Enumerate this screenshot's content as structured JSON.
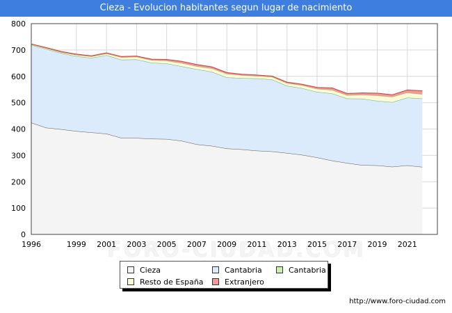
{
  "header": {
    "title": "Cieza - Evolucion habitantes segun lugar de nacimiento"
  },
  "footer": {
    "url": "http://www.foro-ciudad.com"
  },
  "watermark": "FORO-CIUDAD.COM",
  "chart_data": {
    "type": "area",
    "title": "Cieza - Evolucion habitantes segun lugar de nacimiento",
    "xlabel": "",
    "ylabel": "",
    "x": [
      1996,
      1997,
      1998,
      1999,
      2000,
      2001,
      2002,
      2003,
      2004,
      2005,
      2006,
      2007,
      2008,
      2009,
      2010,
      2011,
      2012,
      2013,
      2014,
      2015,
      2016,
      2017,
      2018,
      2019,
      2020,
      2021,
      2022
    ],
    "xticks": [
      "1996",
      "1999",
      "2001",
      "2003",
      "2005",
      "2007",
      "2009",
      "2011",
      "2013",
      "2015",
      "2017",
      "2019",
      "2021"
    ],
    "yticks": [
      "0",
      "100",
      "200",
      "300",
      "400",
      "500",
      "600",
      "700",
      "800"
    ],
    "ylim": [
      0,
      800
    ],
    "xlim": [
      1996,
      2023
    ],
    "grid": true,
    "stacked": true,
    "legend_position": "bottom",
    "series": [
      {
        "name": "Cieza",
        "color": "#f4f4f4",
        "edge": "#555555",
        "values": [
          424,
          405,
          399,
          392,
          387,
          382,
          366,
          366,
          363,
          362,
          355,
          342,
          336,
          326,
          323,
          318,
          315,
          309,
          302,
          292,
          280,
          271,
          263,
          262,
          257,
          262,
          256
        ]
      },
      {
        "name": "Cantabria",
        "color": "#dcebfc",
        "edge": "#8bbbe8",
        "values": [
          295,
          298,
          289,
          284,
          283,
          298,
          297,
          298,
          289,
          287,
          283,
          285,
          281,
          270,
          270,
          274,
          273,
          255,
          253,
          249,
          255,
          245,
          252,
          245,
          245,
          257,
          260
        ]
      },
      {
        "name": "Cantabria",
        "color": "#ccf0b4",
        "edge": "#77bb55",
        "values": [
          0,
          0,
          0,
          0,
          0,
          0,
          0,
          0,
          0,
          0,
          0,
          0,
          0,
          0,
          0,
          0,
          0,
          0,
          0,
          0,
          0,
          0,
          0,
          0,
          0,
          0,
          0
        ]
      },
      {
        "name": "Resto de España",
        "color": "#fbfbd8",
        "edge": "#b8b86a",
        "values": [
          2,
          3,
          3,
          5,
          5,
          6,
          9,
          10,
          9,
          10,
          12,
          11,
          13,
          13,
          11,
          9,
          10,
          10,
          11,
          11,
          13,
          12,
          15,
          20,
          20,
          19,
          16
        ]
      },
      {
        "name": "Extranjero",
        "color": "#f09a9a",
        "edge": "#c04040",
        "values": [
          2,
          3,
          3,
          3,
          3,
          3,
          3,
          3,
          4,
          5,
          7,
          7,
          6,
          5,
          4,
          4,
          3,
          4,
          4,
          6,
          8,
          7,
          7,
          9,
          8,
          10,
          13
        ]
      }
    ]
  }
}
